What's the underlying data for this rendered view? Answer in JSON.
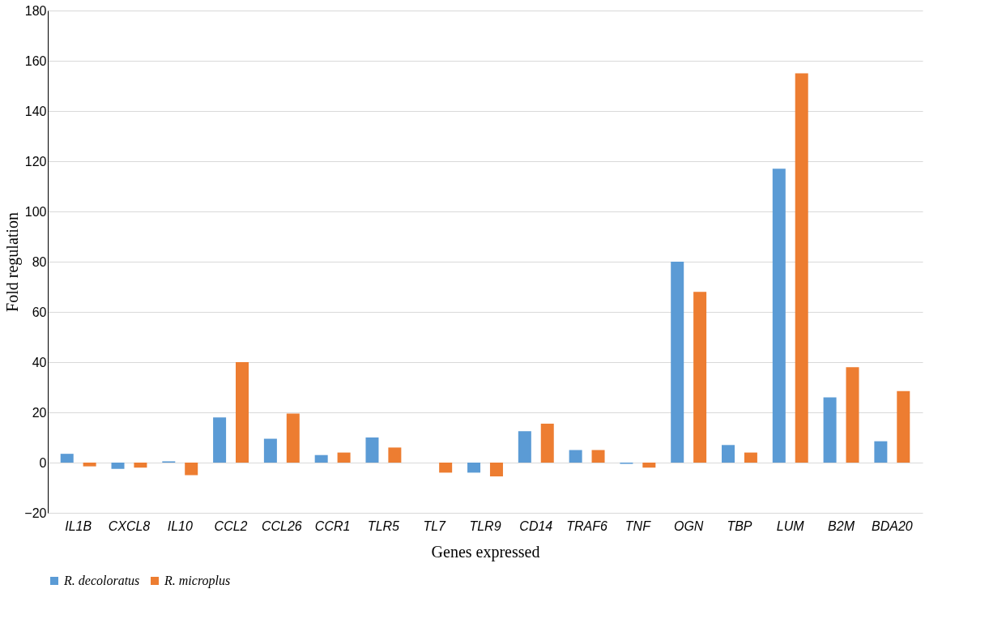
{
  "chart_data": {
    "type": "bar",
    "xlabel": "Genes expressed",
    "ylabel": "Fold regulation",
    "categories": [
      "IL1B",
      "CXCL8",
      "IL10",
      "CCL2",
      "CCL26",
      "CCR1",
      "TLR5",
      "TL7",
      "TLR9",
      "CD14",
      "TRAF6",
      "TNF",
      "OGN",
      "TBP",
      "LUM",
      "B2M",
      "BDA20"
    ],
    "series": [
      {
        "name": "R. decoloratus",
        "color": "#5b9bd5",
        "values": [
          3.5,
          -2.5,
          0.5,
          18,
          9.5,
          3,
          10,
          0,
          -4,
          12.5,
          5,
          -0.5,
          80,
          7,
          117,
          26,
          8.5
        ]
      },
      {
        "name": "R. microplus",
        "color": "#ed7d31",
        "values": [
          -1.5,
          -2,
          -5,
          40,
          19.5,
          4,
          6,
          -4,
          -5.5,
          15.5,
          5,
          -2,
          68,
          4,
          155,
          38,
          28.5
        ]
      }
    ],
    "ylim": [
      -20,
      180
    ],
    "yticks": [
      -20,
      0,
      20,
      40,
      60,
      80,
      100,
      120,
      140,
      160,
      180
    ],
    "grid": "y",
    "legend": "bottom"
  }
}
